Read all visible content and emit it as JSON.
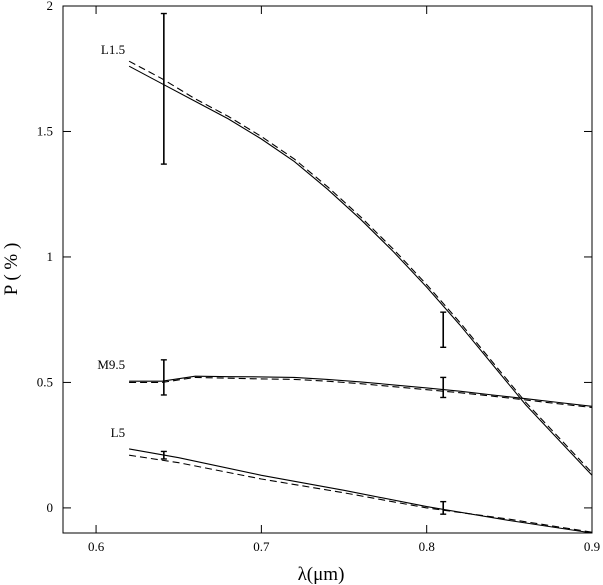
{
  "chart_data": {
    "type": "line",
    "title": "",
    "xlabel": "λ(μm)",
    "ylabel": "P ( % )",
    "xlim": [
      0.58,
      0.9
    ],
    "ylim": [
      -0.1,
      2.0
    ],
    "xticks": [
      0.6,
      0.7,
      0.8,
      0.9
    ],
    "xtick_labels": [
      "0.6",
      "0.7",
      "0.8",
      "0.9"
    ],
    "yticks": [
      0,
      0.5,
      1,
      1.5,
      2
    ],
    "ytick_labels": [
      "0",
      "0.5",
      "1",
      "1.5",
      "2"
    ],
    "grid": false,
    "series": [
      {
        "name": "L1.5",
        "solid": {
          "x": [
            0.62,
            0.64,
            0.66,
            0.68,
            0.7,
            0.72,
            0.74,
            0.76,
            0.78,
            0.8,
            0.82,
            0.84,
            0.86,
            0.88,
            0.9
          ],
          "y": [
            1.76,
            1.69,
            1.62,
            1.55,
            1.47,
            1.38,
            1.27,
            1.15,
            1.02,
            0.88,
            0.73,
            0.57,
            0.41,
            0.27,
            0.13
          ]
        },
        "dashed": {
          "x": [
            0.62,
            0.64,
            0.66,
            0.68,
            0.7,
            0.72,
            0.74,
            0.76,
            0.78,
            0.8,
            0.82,
            0.84,
            0.86,
            0.88,
            0.9
          ],
          "y": [
            1.78,
            1.71,
            1.63,
            1.56,
            1.48,
            1.39,
            1.28,
            1.16,
            1.03,
            0.89,
            0.74,
            0.58,
            0.42,
            0.28,
            0.14
          ]
        },
        "points": [
          {
            "x": 0.641,
            "y": 1.67,
            "err": 0.3
          },
          {
            "x": 0.81,
            "y": 0.71,
            "err": 0.07
          }
        ]
      },
      {
        "name": "M9.5",
        "solid": {
          "x": [
            0.62,
            0.64,
            0.66,
            0.68,
            0.7,
            0.72,
            0.74,
            0.76,
            0.78,
            0.8,
            0.82,
            0.84,
            0.86,
            0.88,
            0.9
          ],
          "y": [
            0.505,
            0.505,
            0.525,
            0.523,
            0.522,
            0.52,
            0.512,
            0.502,
            0.49,
            0.478,
            0.465,
            0.45,
            0.435,
            0.42,
            0.405
          ]
        },
        "dashed": {
          "x": [
            0.62,
            0.64,
            0.66,
            0.68,
            0.7,
            0.72,
            0.74,
            0.76,
            0.78,
            0.8,
            0.82,
            0.84,
            0.86,
            0.88,
            0.9
          ],
          "y": [
            0.5,
            0.5,
            0.52,
            0.517,
            0.514,
            0.512,
            0.505,
            0.495,
            0.483,
            0.471,
            0.459,
            0.445,
            0.43,
            0.415,
            0.4
          ]
        },
        "points": [
          {
            "x": 0.641,
            "y": 0.52,
            "err": 0.07
          },
          {
            "x": 0.81,
            "y": 0.48,
            "err": 0.04
          }
        ]
      },
      {
        "name": "L5",
        "solid": {
          "x": [
            0.62,
            0.65,
            0.7,
            0.75,
            0.8,
            0.85,
            0.9
          ],
          "y": [
            0.235,
            0.2,
            0.13,
            0.07,
            0.005,
            -0.05,
            -0.1
          ]
        },
        "dashed": {
          "x": [
            0.62,
            0.65,
            0.7,
            0.75,
            0.8,
            0.85,
            0.9
          ],
          "y": [
            0.21,
            0.18,
            0.115,
            0.06,
            0.0,
            -0.045,
            -0.097
          ]
        },
        "points": [
          {
            "x": 0.641,
            "y": 0.21,
            "err": 0.015
          },
          {
            "x": 0.81,
            "y": 0.0,
            "err": 0.025
          }
        ]
      }
    ]
  }
}
